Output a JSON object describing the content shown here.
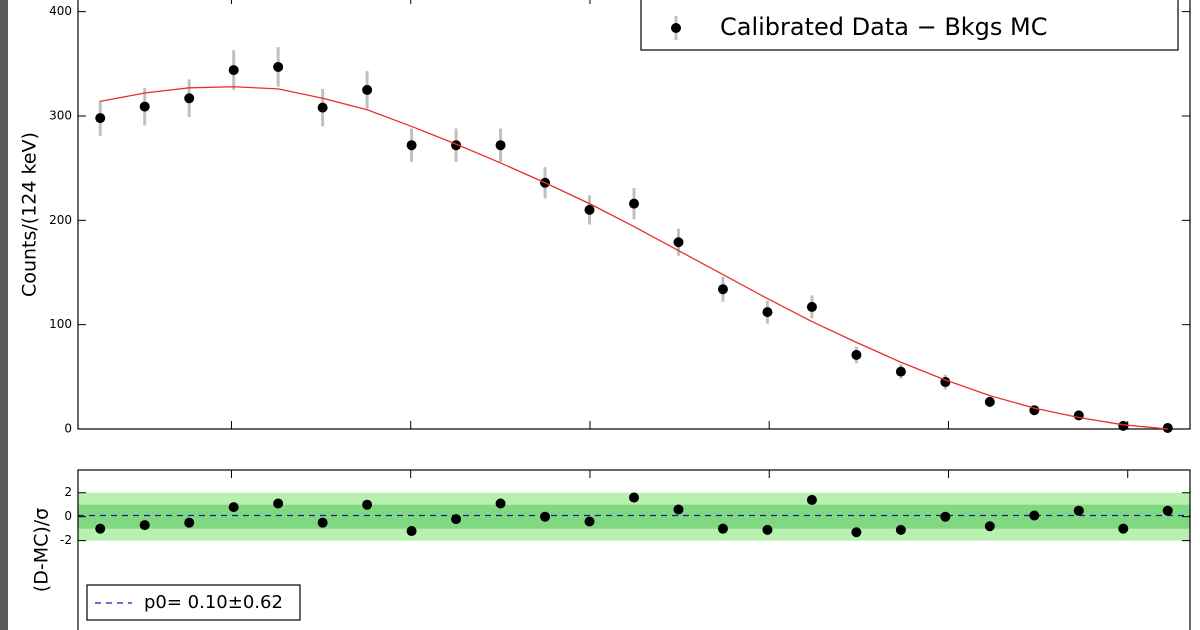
{
  "chart_data": [
    {
      "type": "scatter",
      "y_label": "Counts/(124 keV)",
      "x": [
        0,
        1,
        2,
        3,
        4,
        5,
        6,
        7,
        8,
        9,
        10,
        11,
        12,
        13,
        14,
        15,
        16,
        17,
        18,
        19,
        20,
        21,
        22,
        23,
        24
      ],
      "xlim": [
        -0.5,
        24.5
      ],
      "xticks": [
        2.95,
        6.98,
        11.01,
        15.04,
        19.07,
        23.1
      ],
      "ylim": [
        0,
        415
      ],
      "yticks": [
        0,
        100,
        200,
        300,
        400
      ],
      "legend": "upper right",
      "series": [
        {
          "name": "Calibrated Data − Bkgs MC",
          "color": "#000000",
          "values": [
            298,
            309,
            317,
            344,
            347,
            308,
            325,
            272,
            272,
            272,
            236,
            210,
            216,
            179,
            134,
            112,
            117,
            71,
            55,
            45,
            26,
            18,
            13,
            3,
            1
          ],
          "errors": [
            17,
            18,
            18,
            19,
            19,
            18,
            18,
            16,
            16,
            16,
            15,
            14,
            15,
            13,
            12,
            11,
            11,
            8,
            7,
            7,
            5,
            4,
            4,
            2,
            1
          ],
          "error_color": "#c0c0c0"
        },
        {
          "style": "line",
          "color": "#e8302a",
          "values": [
            314,
            322,
            327,
            328,
            326,
            317,
            306,
            290,
            273,
            255,
            236,
            216,
            194,
            171,
            148,
            125,
            103,
            83,
            64,
            47,
            32,
            20,
            11,
            4,
            0
          ]
        }
      ]
    },
    {
      "type": "scatter",
      "y_label": "(D-MC)/σ",
      "x": [
        0,
        1,
        2,
        3,
        4,
        5,
        6,
        7,
        8,
        9,
        10,
        11,
        12,
        13,
        14,
        15,
        16,
        17,
        18,
        19,
        20,
        21,
        22,
        23,
        24
      ],
      "xlim": [
        -0.5,
        24.5
      ],
      "xticks": [
        2.95,
        6.98,
        11.01,
        15.04,
        19.07,
        23.1
      ],
      "ylim": [
        -10.3,
        3.9
      ],
      "yticks": [
        2,
        0,
        -2
      ],
      "bands": [
        {
          "sigma": 2,
          "color": "#b8f0b0"
        },
        {
          "sigma": 1,
          "color": "#80d880"
        }
      ],
      "legend": "lower left",
      "series": [
        {
          "color": "#000000",
          "values": [
            -1.0,
            -0.7,
            -0.5,
            0.8,
            1.1,
            -0.5,
            1.0,
            -1.2,
            -0.2,
            1.1,
            0.0,
            -0.4,
            1.6,
            0.6,
            -1.0,
            -1.1,
            1.4,
            -1.3,
            -1.1,
            0.0,
            -0.8,
            0.1,
            0.5,
            -1.0,
            0.5
          ]
        }
      ],
      "fit": {
        "label": "p0= 0.10±0.62",
        "value": 0.1,
        "color": "#1a1aa0"
      }
    }
  ]
}
